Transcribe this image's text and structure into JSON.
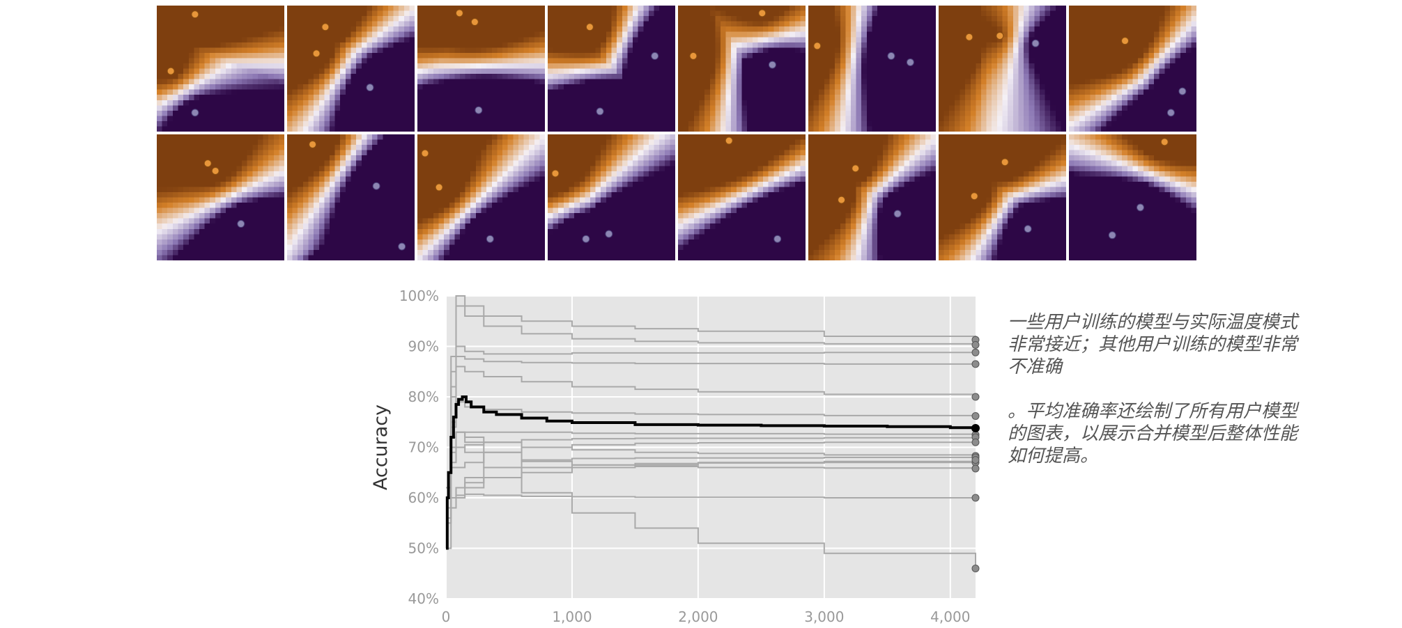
{
  "tiles": [
    {
      "id": "r1c1",
      "warm": [
        [
          0.3,
          0.07
        ],
        [
          0.11,
          0.52
        ]
      ],
      "cool": [
        [
          0.3,
          0.85
        ]
      ]
    },
    {
      "id": "r1c2",
      "warm": [
        [
          0.3,
          0.17
        ],
        [
          0.23,
          0.38
        ]
      ],
      "cool": [
        [
          0.65,
          0.65
        ]
      ]
    },
    {
      "id": "r1c3",
      "warm": [
        [
          0.33,
          0.06
        ],
        [
          0.45,
          0.13
        ]
      ],
      "cool": [
        [
          0.48,
          0.83
        ]
      ]
    },
    {
      "id": "r1c4",
      "warm": [
        [
          0.33,
          0.17
        ]
      ],
      "cool": [
        [
          0.84,
          0.4
        ],
        [
          0.41,
          0.84
        ]
      ]
    },
    {
      "id": "r1c5",
      "warm": [
        [
          0.66,
          0.06
        ],
        [
          0.12,
          0.4
        ]
      ],
      "cool": [
        [
          0.74,
          0.47
        ]
      ]
    },
    {
      "id": "r1c6",
      "warm": [
        [
          0.07,
          0.32
        ]
      ],
      "cool": [
        [
          0.65,
          0.4
        ],
        [
          0.8,
          0.45
        ]
      ]
    },
    {
      "id": "r1c7",
      "warm": [
        [
          0.24,
          0.25
        ],
        [
          0.48,
          0.24
        ]
      ],
      "cool": [
        [
          0.76,
          0.3
        ]
      ]
    },
    {
      "id": "r1c8",
      "warm": [
        [
          0.44,
          0.28
        ]
      ],
      "cool": [
        [
          0.89,
          0.68
        ],
        [
          0.8,
          0.85
        ]
      ]
    },
    {
      "id": "r2c1",
      "warm": [
        [
          0.4,
          0.23
        ],
        [
          0.46,
          0.29
        ]
      ],
      "cool": [
        [
          0.66,
          0.71
        ]
      ]
    },
    {
      "id": "r2c2",
      "warm": [
        [
          0.2,
          0.08
        ]
      ],
      "cool": [
        [
          0.7,
          0.41
        ],
        [
          0.9,
          0.89
        ]
      ]
    },
    {
      "id": "r2c3",
      "warm": [
        [
          0.06,
          0.15
        ],
        [
          0.17,
          0.42
        ]
      ],
      "cool": [
        [
          0.57,
          0.83
        ]
      ]
    },
    {
      "id": "r2c4",
      "warm": [
        [
          0.06,
          0.31
        ]
      ],
      "cool": [
        [
          0.3,
          0.83
        ],
        [
          0.48,
          0.79
        ]
      ]
    },
    {
      "id": "r2c5",
      "warm": [
        [
          0.4,
          0.05
        ]
      ],
      "cool": [
        [
          0.78,
          0.83
        ]
      ]
    },
    {
      "id": "r2c6",
      "warm": [
        [
          0.37,
          0.27
        ],
        [
          0.26,
          0.52
        ]
      ],
      "cool": [
        [
          0.7,
          0.63
        ]
      ]
    },
    {
      "id": "r2c7",
      "warm": [
        [
          0.52,
          0.22
        ],
        [
          0.28,
          0.49
        ]
      ],
      "cool": [
        [
          0.7,
          0.75
        ]
      ]
    },
    {
      "id": "r2c8",
      "warm": [
        [
          0.75,
          0.06
        ]
      ],
      "cool": [
        [
          0.56,
          0.58
        ],
        [
          0.34,
          0.8
        ]
      ]
    }
  ],
  "chart_data": {
    "type": "line",
    "title": "",
    "xlabel": "",
    "ylabel": "Accuracy",
    "xlim": [
      0,
      4200
    ],
    "ylim": [
      0.4,
      1.0
    ],
    "xticks": [
      0,
      1000,
      2000,
      3000,
      4000
    ],
    "xtick_labels": [
      "0",
      "1,000",
      "2,000",
      "3,000",
      "4,000"
    ],
    "yticks": [
      0.4,
      0.5,
      0.6,
      0.7,
      0.8,
      0.9,
      1.0
    ],
    "ytick_labels": [
      "40%",
      "50%",
      "60%",
      "70%",
      "80%",
      "90%",
      "100%"
    ],
    "grid": true,
    "series": [
      {
        "role": "user",
        "x": [
          0,
          40,
          80,
          150,
          300,
          600,
          1000,
          1500,
          2000,
          3000,
          4200
        ],
        "y": [
          0.6,
          0.88,
          1.0,
          0.98,
          0.96,
          0.95,
          0.94,
          0.935,
          0.93,
          0.92,
          0.913
        ]
      },
      {
        "role": "user",
        "x": [
          0,
          40,
          80,
          150,
          300,
          600,
          1000,
          1500,
          2000,
          3000,
          4200
        ],
        "y": [
          0.6,
          0.85,
          0.98,
          0.96,
          0.94,
          0.925,
          0.915,
          0.91,
          0.907,
          0.905,
          0.903
        ]
      },
      {
        "role": "user",
        "x": [
          0,
          40,
          80,
          150,
          300,
          600,
          1000,
          1500,
          2000,
          3000,
          4200
        ],
        "y": [
          0.6,
          0.82,
          0.9,
          0.89,
          0.885,
          0.885,
          0.887,
          0.887,
          0.887,
          0.888,
          0.888
        ]
      },
      {
        "role": "user",
        "x": [
          0,
          40,
          80,
          150,
          300,
          600,
          1000,
          1500,
          2000,
          3000,
          4200
        ],
        "y": [
          0.6,
          0.8,
          0.88,
          0.875,
          0.87,
          0.868,
          0.867,
          0.866,
          0.866,
          0.865,
          0.865
        ]
      },
      {
        "role": "user",
        "x": [
          0,
          40,
          80,
          150,
          300,
          600,
          1000,
          1500,
          2000,
          3000,
          4200
        ],
        "y": [
          0.55,
          0.75,
          0.86,
          0.85,
          0.84,
          0.83,
          0.82,
          0.815,
          0.81,
          0.805,
          0.8
        ]
      },
      {
        "role": "user",
        "x": [
          0,
          40,
          80,
          150,
          300,
          600,
          1000,
          1500,
          2000,
          3000,
          4200
        ],
        "y": [
          0.58,
          0.74,
          0.79,
          0.78,
          0.775,
          0.77,
          0.768,
          0.766,
          0.765,
          0.763,
          0.762
        ]
      },
      {
        "role": "user",
        "x": [
          0,
          40,
          80,
          150,
          300,
          600,
          1000,
          1500,
          2000,
          3000,
          4200
        ],
        "y": [
          0.6,
          0.7,
          0.73,
          0.73,
          0.73,
          0.73,
          0.728,
          0.727,
          0.727,
          0.726,
          0.725
        ]
      },
      {
        "role": "user",
        "x": [
          0,
          40,
          80,
          150,
          300,
          600,
          1000,
          1500,
          2000,
          3000,
          4200
        ],
        "y": [
          0.62,
          0.69,
          0.7,
          0.705,
          0.71,
          0.715,
          0.717,
          0.718,
          0.718,
          0.719,
          0.72
        ]
      },
      {
        "role": "user",
        "x": [
          0,
          40,
          80,
          150,
          300,
          600,
          1000,
          1500,
          2000,
          3000,
          4200
        ],
        "y": [
          0.6,
          0.66,
          0.66,
          0.67,
          0.69,
          0.7,
          0.705,
          0.708,
          0.709,
          0.71,
          0.71
        ]
      },
      {
        "role": "user",
        "x": [
          0,
          40,
          80,
          150,
          300,
          600,
          1000,
          1500,
          2000,
          3000,
          4200
        ],
        "y": [
          0.6,
          0.72,
          0.73,
          0.72,
          0.71,
          0.7,
          0.695,
          0.69,
          0.688,
          0.685,
          0.683
        ]
      },
      {
        "role": "user",
        "x": [
          0,
          40,
          80,
          150,
          300,
          600,
          1000,
          1500,
          2000,
          3000,
          4200
        ],
        "y": [
          0.58,
          0.6,
          0.62,
          0.64,
          0.66,
          0.675,
          0.678,
          0.679,
          0.679,
          0.68,
          0.68
        ]
      },
      {
        "role": "user",
        "x": [
          0,
          40,
          80,
          150,
          300,
          600,
          1000,
          1500,
          2000,
          3000,
          4200
        ],
        "y": [
          0.56,
          0.58,
          0.6,
          0.62,
          0.64,
          0.66,
          0.665,
          0.668,
          0.669,
          0.67,
          0.67
        ]
      },
      {
        "role": "user",
        "x": [
          0,
          40,
          80,
          150,
          300,
          600,
          1000,
          1500,
          2000,
          3000,
          4200
        ],
        "y": [
          0.6,
          0.7,
          0.73,
          0.71,
          0.69,
          0.672,
          0.665,
          0.662,
          0.66,
          0.659,
          0.658
        ]
      },
      {
        "role": "user",
        "x": [
          0,
          40,
          80,
          150,
          300,
          600,
          1000,
          1500,
          2000,
          3000,
          4200
        ],
        "y": [
          0.58,
          0.6,
          0.605,
          0.607,
          0.605,
          0.603,
          0.602,
          0.601,
          0.601,
          0.6,
          0.6
        ]
      },
      {
        "role": "user",
        "x": [
          0,
          40,
          80,
          150,
          300,
          600,
          1000,
          1500,
          2000,
          3000,
          4200
        ],
        "y": [
          0.6,
          0.67,
          0.7,
          0.69,
          0.66,
          0.61,
          0.57,
          0.54,
          0.51,
          0.49,
          0.46
        ]
      },
      {
        "role": "user",
        "x": [
          0,
          40,
          80,
          150,
          300,
          600,
          1000,
          1500,
          2000,
          3000,
          4200
        ],
        "y": [
          0.5,
          0.6,
          0.62,
          0.63,
          0.64,
          0.65,
          0.66,
          0.665,
          0.67,
          0.672,
          0.675
        ]
      },
      {
        "role": "mean",
        "x": [
          0,
          10,
          20,
          40,
          60,
          80,
          100,
          130,
          160,
          200,
          300,
          400,
          600,
          800,
          1000,
          1500,
          2000,
          2500,
          3000,
          3500,
          4000,
          4200
        ],
        "y": [
          0.5,
          0.6,
          0.65,
          0.72,
          0.76,
          0.785,
          0.795,
          0.8,
          0.79,
          0.78,
          0.77,
          0.765,
          0.758,
          0.752,
          0.749,
          0.745,
          0.744,
          0.743,
          0.742,
          0.741,
          0.739,
          0.738
        ]
      }
    ]
  },
  "annotation": {
    "para1": "一些用户训练的模型与实际温度模式非常接近；其他用户训练的模型非常不准确",
    "para2": "。平均准确率还绘制了所有用户模型的图表，以展示合并模型后整体性能如何提高。"
  }
}
